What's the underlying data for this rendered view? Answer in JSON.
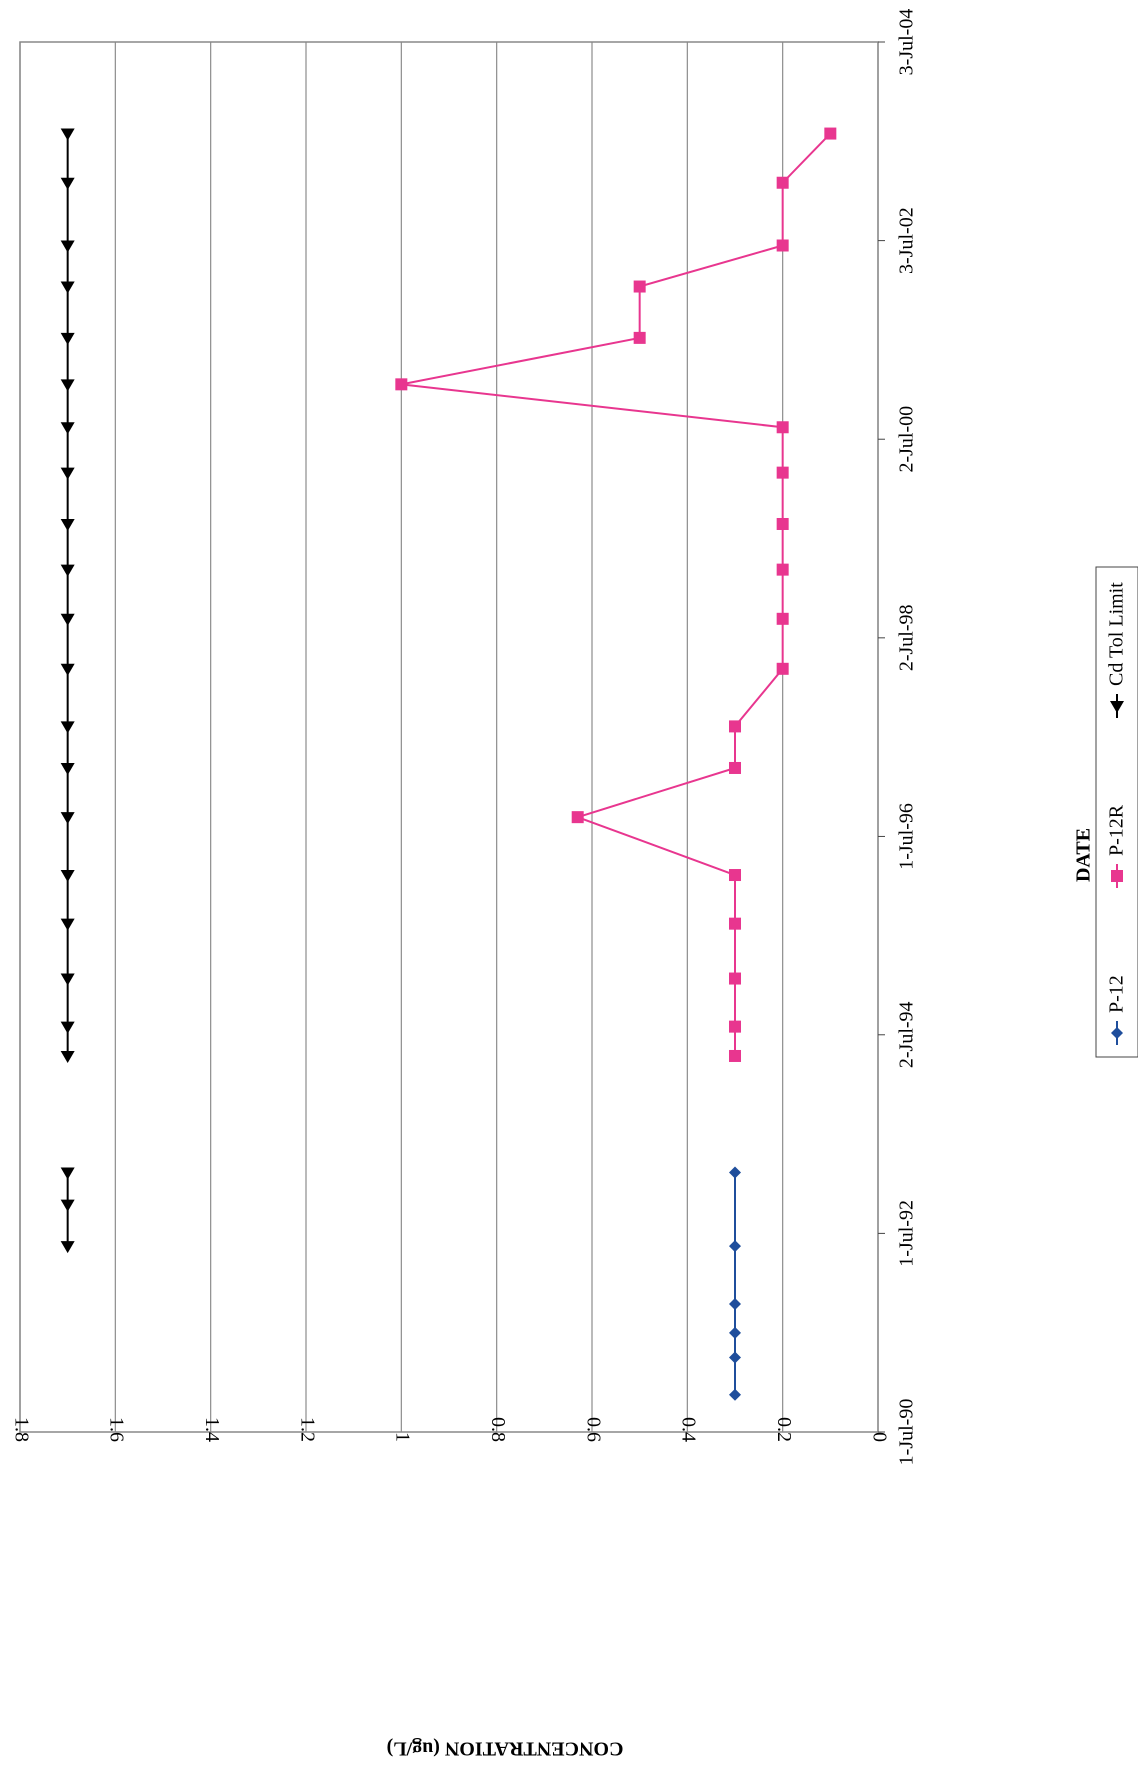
{
  "chart_data": {
    "type": "line",
    "xlabel": "DATE",
    "ylabel": "CONCENTRATION (ug/L)",
    "ylim": [
      0,
      1.8
    ],
    "y_ticks": [
      0,
      0.2,
      0.4,
      0.6,
      0.8,
      1,
      1.2,
      1.4,
      1.6,
      1.8
    ],
    "y_tick_labels": [
      "0",
      "0.2",
      "0.4",
      "0.6",
      "0.8",
      "1",
      "1.2",
      "1.4",
      "1.6",
      "1.8"
    ],
    "xlim": [
      "1990-07-01",
      "2004-07-03"
    ],
    "x_ticks": [
      "1990-07-01",
      "1992-07-01",
      "1994-07-02",
      "1996-07-01",
      "1998-07-02",
      "2000-07-02",
      "2002-07-03",
      "2004-07-03"
    ],
    "x_tick_labels": [
      "1-Jul-90",
      "1-Jul-92",
      "2-Jul-94",
      "1-Jul-96",
      "2-Jul-98",
      "2-Jul-00",
      "3-Jul-02",
      "3-Jul-04"
    ],
    "grid": true,
    "legend_position": "bottom",
    "series": [
      {
        "name": "P-12",
        "color": "#1f4e9c",
        "marker": "diamond",
        "x": [
          "1990-11-15",
          "1991-04-01",
          "1991-07-01",
          "1991-10-15",
          "1992-05-15",
          "1993-02-10"
        ],
        "y": [
          0.3,
          0.3,
          0.3,
          0.3,
          0.3,
          0.3
        ]
      },
      {
        "name": "P-12R",
        "color": "#e8368f",
        "marker": "square",
        "x": [
          "1994-04-15",
          "1994-08-01",
          "1995-01-25",
          "1995-08-15",
          "1996-02-10",
          "1996-09-10",
          "1997-03-10",
          "1997-08-10",
          "1998-03-10",
          "1998-09-10",
          "1999-03-10",
          "1999-08-25",
          "2000-03-01",
          "2000-08-15",
          "2001-01-20",
          "2001-07-10",
          "2002-01-15",
          "2002-06-15",
          "2003-02-01",
          "2003-08-01"
        ],
        "y": [
          0.3,
          0.3,
          0.3,
          0.3,
          0.3,
          0.63,
          0.3,
          0.3,
          0.2,
          0.2,
          0.2,
          0.2,
          0.2,
          0.2,
          1.0,
          0.5,
          0.5,
          0.2,
          0.2,
          0.1
        ]
      },
      {
        "name": "Cd Tol Limit",
        "color": "#000000",
        "marker": "triangle",
        "x": [
          "1992-05-15",
          "1992-10-15",
          "1993-02-10",
          "1994-04-15",
          "1994-08-01",
          "1995-01-25",
          "1995-08-15",
          "1996-02-10",
          "1996-09-10",
          "1997-03-10",
          "1997-08-10",
          "1998-03-10",
          "1998-09-10",
          "1999-03-10",
          "1999-08-25",
          "2000-03-01",
          "2000-08-15",
          "2001-01-20",
          "2001-07-10",
          "2002-01-15",
          "2002-06-15",
          "2003-02-01",
          "2003-08-01"
        ],
        "y": [
          1.7,
          1.7,
          1.7,
          1.7,
          1.7,
          1.7,
          1.7,
          1.7,
          1.7,
          1.7,
          1.7,
          1.7,
          1.7,
          1.7,
          1.7,
          1.7,
          1.7,
          1.7,
          1.7,
          1.7,
          1.7,
          1.7,
          1.7
        ],
        "segments": [
          [
            0,
            2
          ],
          [
            3,
            22
          ]
        ]
      }
    ]
  }
}
